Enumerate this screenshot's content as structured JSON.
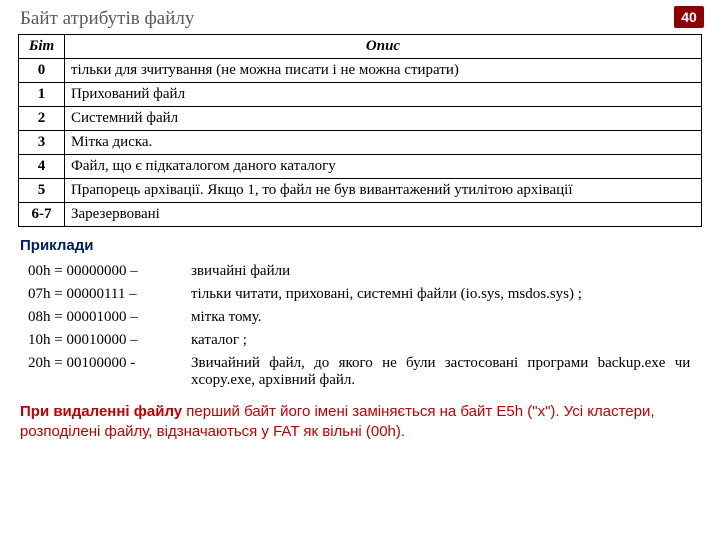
{
  "slide_number": "40",
  "title": "Байт атрибутів файлу",
  "table": {
    "head_bit": "Біт",
    "head_desc": "Опис",
    "rows": [
      {
        "bit": "0",
        "desc": "тільки для зчитування (не можна писати і не можна стирати)"
      },
      {
        "bit": "1",
        "desc": "Прихований файл"
      },
      {
        "bit": "2",
        "desc": "Системний файл"
      },
      {
        "bit": "3",
        "desc": "Мітка диска."
      },
      {
        "bit": "4",
        "desc": "Файл, що є підкаталогом даного каталогу"
      },
      {
        "bit": "5",
        "desc": "Прапорець архівації. Якщо 1, то файл не був вивантажений утилітою архівації"
      },
      {
        "bit": "6-7",
        "desc": "Зарезервовані"
      }
    ]
  },
  "examples_title": "Приклади",
  "examples": [
    {
      "code": "00h = 00000000 –",
      "desc": "звичайні файли",
      "justify": false
    },
    {
      "code": "07h = 00000111 –",
      "desc": "тільки читати, приховані, системні файли (io.sys, msdos.sys) ;",
      "justify": false
    },
    {
      "code": "08h = 00001000 –",
      "desc": "мітка тому.",
      "justify": false
    },
    {
      "code": "10h = 00010000 –",
      "desc": "каталог ;",
      "justify": false
    },
    {
      "code": "20h = 00100000 -",
      "desc": "Звичайний файл, до якого не були застосовані програми backup.exe чи xcopy.exe, архівний файл.",
      "justify": true
    }
  ],
  "footnote": {
    "bold1": "При видаленні файлу",
    "part1": " перший байт його імені заміняється на байт E5h (\"х\"). Усі кластери, розподілені файлу, відзначаються у FAT як вільні (00h)."
  },
  "colors": {
    "title": "#595959",
    "badge_bg": "#8b0000",
    "accent_blue": "#002060",
    "accent_red": "#c00000",
    "border": "#000000"
  }
}
